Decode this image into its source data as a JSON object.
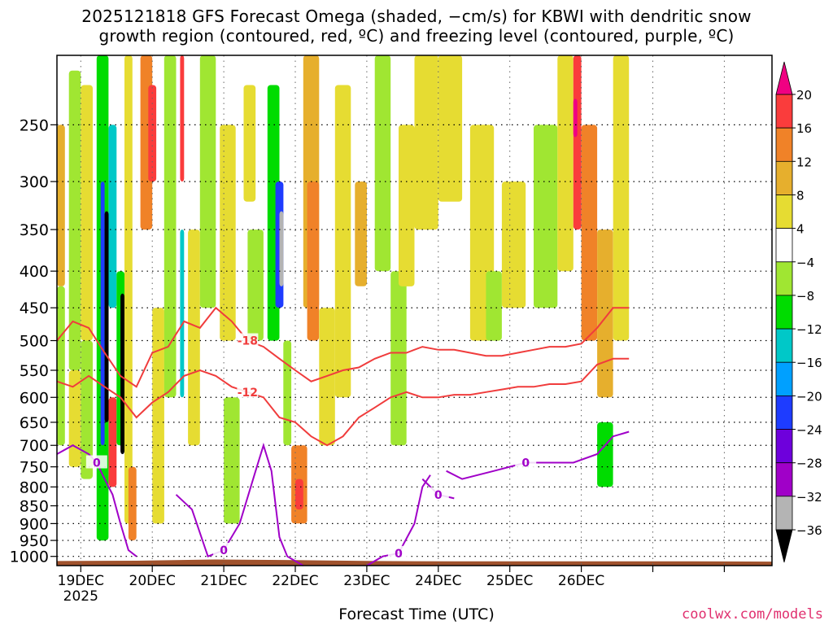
{
  "title_line1": "2025121818 GFS Forecast Omega (shaded, −cm/s) for KBWI with dendritic snow",
  "title_line2": "growth region (contoured, red, ºC) and freezing level (contoured, purple, ºC)",
  "credit": "coolwx.com/models",
  "chart_data": {
    "type": "heatmap",
    "title": "2025121818 GFS Forecast Omega (shaded, −cm/s) for KBWI with dendritic snow growth region (contoured, red, ºC) and freezing level (contoured, purple, ºC)",
    "xlabel": "Forecast Time (UTC)",
    "ylabel": "",
    "x_axis": {
      "unit": "hours since 2025-12-18 18 UTC",
      "range": [
        0,
        180
      ],
      "tick_hours": [
        6,
        24,
        42,
        60,
        78,
        96,
        114,
        132,
        150,
        168
      ],
      "tick_labels": [
        "19DEC",
        "20DEC",
        "21DEC",
        "22DEC",
        "23DEC",
        "24DEC",
        "25DEC",
        "26DEC"
      ],
      "tick_label_hours": [
        6,
        24,
        42,
        60,
        78,
        96,
        114,
        132
      ],
      "year_label": "2025"
    },
    "y_axis": {
      "unit": "hPa",
      "scale": "log",
      "inverted": true,
      "range": [
        1030,
        200
      ],
      "ticks": [
        250,
        300,
        350,
        400,
        450,
        500,
        550,
        600,
        650,
        700,
        750,
        800,
        850,
        900,
        950,
        1000
      ]
    },
    "grid": true,
    "colorbar": {
      "levels": [
        -36,
        -32,
        -28,
        -24,
        -20,
        -16,
        -12,
        -8,
        -4,
        4,
        8,
        12,
        16,
        20
      ],
      "tick_labels": [
        "20",
        "16",
        "12",
        "8",
        "4",
        "−4",
        "−8",
        "−12",
        "−16",
        "−20",
        "−24",
        "−28",
        "−32",
        "−36"
      ],
      "colors": [
        "#000000",
        "#b4b4b4",
        "#a000c8",
        "#6e00dc",
        "#1e3cff",
        "#00a0ff",
        "#00c8c8",
        "#00dc00",
        "#a0e632",
        "#ffffff",
        "#e6dc32",
        "#e6af2d",
        "#f08228",
        "#fa3c3c",
        "#f00082"
      ],
      "upper_arrow_color": "#f00082",
      "lower_arrow_color": "#000000"
    },
    "omega_cells": [
      {
        "t": [
          0,
          2
        ],
        "p": [
          250,
          420
        ],
        "v": 8
      },
      {
        "t": [
          0,
          2
        ],
        "p": [
          420,
          700
        ],
        "v": -6
      },
      {
        "t": [
          3,
          6
        ],
        "p": [
          210,
          550
        ],
        "v": -6
      },
      {
        "t": [
          3,
          6
        ],
        "p": [
          550,
          750
        ],
        "v": 6
      },
      {
        "t": [
          6,
          9
        ],
        "p": [
          220,
          500
        ],
        "v": 6
      },
      {
        "t": [
          6,
          9
        ],
        "p": [
          500,
          780
        ],
        "v": -8
      },
      {
        "t": [
          10,
          13
        ],
        "p": [
          200,
          950
        ],
        "v": -10
      },
      {
        "t": [
          11,
          12
        ],
        "p": [
          300,
          700
        ],
        "v": -22
      },
      {
        "t": [
          12,
          13
        ],
        "p": [
          330,
          650
        ],
        "v": -38
      },
      {
        "t": [
          13,
          15
        ],
        "p": [
          250,
          450
        ],
        "v": -14
      },
      {
        "t": [
          13,
          15
        ],
        "p": [
          600,
          800
        ],
        "v": 16
      },
      {
        "t": [
          15,
          17
        ],
        "p": [
          400,
          700
        ],
        "v": -10
      },
      {
        "t": [
          16,
          17
        ],
        "p": [
          430,
          720
        ],
        "v": -38
      },
      {
        "t": [
          17,
          19
        ],
        "p": [
          200,
          900
        ],
        "v": 6
      },
      {
        "t": [
          18,
          20
        ],
        "p": [
          750,
          950
        ],
        "v": 14
      },
      {
        "t": [
          21,
          24
        ],
        "p": [
          200,
          350
        ],
        "v": 14
      },
      {
        "t": [
          23,
          25
        ],
        "p": [
          220,
          300
        ],
        "v": 18
      },
      {
        "t": [
          24,
          27
        ],
        "p": [
          450,
          900
        ],
        "v": 6
      },
      {
        "t": [
          27,
          30
        ],
        "p": [
          200,
          600
        ],
        "v": -8
      },
      {
        "t": [
          31,
          32
        ],
        "p": [
          200,
          300
        ],
        "v": 16
      },
      {
        "t": [
          31,
          32
        ],
        "p": [
          350,
          600
        ],
        "v": -16
      },
      {
        "t": [
          33,
          36
        ],
        "p": [
          350,
          700
        ],
        "v": 6
      },
      {
        "t": [
          36,
          40
        ],
        "p": [
          200,
          450
        ],
        "v": -6
      },
      {
        "t": [
          41,
          45
        ],
        "p": [
          250,
          500
        ],
        "v": 5
      },
      {
        "t": [
          42,
          46
        ],
        "p": [
          600,
          900
        ],
        "v": -8
      },
      {
        "t": [
          47,
          50
        ],
        "p": [
          220,
          320
        ],
        "v": 6
      },
      {
        "t": [
          48,
          52
        ],
        "p": [
          350,
          500
        ],
        "v": -6
      },
      {
        "t": [
          53,
          56
        ],
        "p": [
          220,
          500
        ],
        "v": -12
      },
      {
        "t": [
          55,
          57
        ],
        "p": [
          300,
          450
        ],
        "v": -22
      },
      {
        "t": [
          56,
          57
        ],
        "p": [
          330,
          420
        ],
        "v": -34
      },
      {
        "t": [
          57,
          59
        ],
        "p": [
          500,
          700
        ],
        "v": -8
      },
      {
        "t": [
          59,
          63
        ],
        "p": [
          700,
          900
        ],
        "v": 12
      },
      {
        "t": [
          60,
          62
        ],
        "p": [
          780,
          860
        ],
        "v": 18
      },
      {
        "t": [
          62,
          66
        ],
        "p": [
          200,
          450
        ],
        "v": 10
      },
      {
        "t": [
          63,
          66
        ],
        "p": [
          300,
          500
        ],
        "v": 14
      },
      {
        "t": [
          66,
          70
        ],
        "p": [
          450,
          700
        ],
        "v": 6
      },
      {
        "t": [
          70,
          74
        ],
        "p": [
          220,
          600
        ],
        "v": 5
      },
      {
        "t": [
          75,
          78
        ],
        "p": [
          300,
          420
        ],
        "v": 10
      },
      {
        "t": [
          80,
          84
        ],
        "p": [
          200,
          400
        ],
        "v": -8
      },
      {
        "t": [
          84,
          88
        ],
        "p": [
          400,
          700
        ],
        "v": -8
      },
      {
        "t": [
          86,
          90
        ],
        "p": [
          250,
          420
        ],
        "v": 6
      },
      {
        "t": [
          90,
          96
        ],
        "p": [
          200,
          350
        ],
        "v": 6
      },
      {
        "t": [
          96,
          102
        ],
        "p": [
          200,
          320
        ],
        "v": 5
      },
      {
        "t": [
          104,
          110
        ],
        "p": [
          250,
          500
        ],
        "v": 5
      },
      {
        "t": [
          108,
          112
        ],
        "p": [
          400,
          500
        ],
        "v": -6
      },
      {
        "t": [
          112,
          118
        ],
        "p": [
          300,
          450
        ],
        "v": 5
      },
      {
        "t": [
          120,
          126
        ],
        "p": [
          250,
          450
        ],
        "v": -6
      },
      {
        "t": [
          126,
          130
        ],
        "p": [
          200,
          400
        ],
        "v": 6
      },
      {
        "t": [
          130,
          132
        ],
        "p": [
          200,
          350
        ],
        "v": 18
      },
      {
        "t": [
          130,
          131
        ],
        "p": [
          230,
          260
        ],
        "v": 22
      },
      {
        "t": [
          132,
          136
        ],
        "p": [
          250,
          500
        ],
        "v": 12
      },
      {
        "t": [
          136,
          140
        ],
        "p": [
          350,
          600
        ],
        "v": 8
      },
      {
        "t": [
          136,
          140
        ],
        "p": [
          650,
          800
        ],
        "v": -10
      },
      {
        "t": [
          140,
          144
        ],
        "p": [
          200,
          500
        ],
        "v": 6
      }
    ],
    "dendritic_contours": [
      {
        "label": "-18",
        "points": [
          [
            0,
            500
          ],
          [
            4,
            470
          ],
          [
            8,
            480
          ],
          [
            12,
            520
          ],
          [
            16,
            560
          ],
          [
            20,
            580
          ],
          [
            24,
            520
          ],
          [
            28,
            510
          ],
          [
            32,
            470
          ],
          [
            36,
            480
          ],
          [
            40,
            450
          ],
          [
            44,
            470
          ],
          [
            48,
            500
          ],
          [
            52,
            510
          ],
          [
            56,
            530
          ],
          [
            60,
            550
          ],
          [
            64,
            570
          ],
          [
            68,
            560
          ],
          [
            72,
            550
          ],
          [
            76,
            545
          ],
          [
            80,
            530
          ],
          [
            84,
            520
          ],
          [
            88,
            520
          ],
          [
            92,
            510
          ],
          [
            96,
            515
          ],
          [
            100,
            515
          ],
          [
            104,
            520
          ],
          [
            108,
            525
          ],
          [
            112,
            525
          ],
          [
            116,
            520
          ],
          [
            120,
            515
          ],
          [
            124,
            510
          ],
          [
            128,
            510
          ],
          [
            132,
            505
          ],
          [
            136,
            480
          ],
          [
            140,
            450
          ],
          [
            144,
            450
          ]
        ]
      },
      {
        "label": "-12",
        "points": [
          [
            0,
            570
          ],
          [
            4,
            580
          ],
          [
            8,
            560
          ],
          [
            12,
            580
          ],
          [
            16,
            600
          ],
          [
            20,
            640
          ],
          [
            24,
            610
          ],
          [
            28,
            590
          ],
          [
            32,
            560
          ],
          [
            36,
            550
          ],
          [
            40,
            560
          ],
          [
            44,
            580
          ],
          [
            48,
            590
          ],
          [
            52,
            600
          ],
          [
            56,
            640
          ],
          [
            60,
            650
          ],
          [
            64,
            680
          ],
          [
            68,
            700
          ],
          [
            72,
            680
          ],
          [
            76,
            640
          ],
          [
            80,
            620
          ],
          [
            84,
            600
          ],
          [
            88,
            590
          ],
          [
            92,
            600
          ],
          [
            96,
            600
          ],
          [
            100,
            595
          ],
          [
            104,
            595
          ],
          [
            108,
            590
          ],
          [
            112,
            585
          ],
          [
            116,
            580
          ],
          [
            120,
            580
          ],
          [
            124,
            575
          ],
          [
            128,
            575
          ],
          [
            132,
            570
          ],
          [
            136,
            540
          ],
          [
            140,
            530
          ],
          [
            144,
            530
          ]
        ]
      }
    ],
    "freezing_contours": [
      {
        "label": "0",
        "points": [
          [
            0,
            720
          ],
          [
            4,
            700
          ],
          [
            8,
            720
          ],
          [
            10,
            740
          ],
          [
            12,
            780
          ],
          [
            14,
            820
          ],
          [
            16,
            900
          ],
          [
            18,
            980
          ],
          [
            20,
            1000
          ]
        ]
      },
      {
        "label": "0",
        "points": [
          [
            30,
            820
          ],
          [
            34,
            860
          ],
          [
            38,
            1000
          ],
          [
            42,
            980
          ],
          [
            46,
            900
          ],
          [
            50,
            760
          ],
          [
            52,
            700
          ],
          [
            54,
            760
          ],
          [
            56,
            940
          ],
          [
            58,
            1000
          ],
          [
            62,
            1030
          ]
        ]
      },
      {
        "label": "0",
        "points": [
          [
            92,
            780
          ],
          [
            96,
            820
          ],
          [
            100,
            830
          ]
        ]
      },
      {
        "label": "0",
        "points": [
          [
            98,
            760
          ],
          [
            102,
            780
          ],
          [
            110,
            760
          ],
          [
            118,
            740
          ],
          [
            124,
            740
          ],
          [
            130,
            740
          ],
          [
            136,
            720
          ],
          [
            140,
            680
          ],
          [
            144,
            670
          ]
        ]
      },
      {
        "label": "0",
        "points": [
          [
            78,
            1030
          ],
          [
            82,
            1000
          ],
          [
            86,
            990
          ],
          [
            90,
            900
          ],
          [
            92,
            800
          ],
          [
            94,
            770
          ]
        ]
      }
    ],
    "terrain_hpa": [
      1015,
      1014,
      1010,
      1012,
      1015,
      1016,
      1016,
      1016,
      1016,
      1017
    ]
  }
}
